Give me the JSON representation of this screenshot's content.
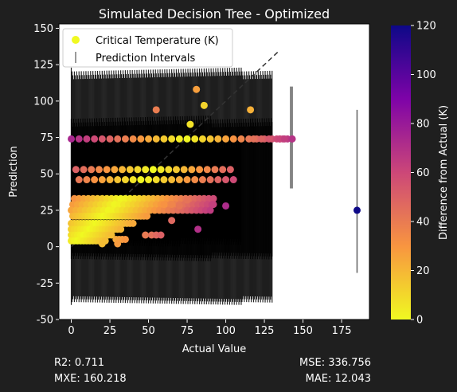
{
  "colors": {
    "background": "#1f1f1f",
    "plot_background": "#ffffff",
    "text": "#ffffff",
    "errorbar": "#000000",
    "reference_line": "#333333"
  },
  "chart_data": {
    "type": "scatter",
    "title": "Simulated Decision Tree - Optimized",
    "xlabel": "Actual Value",
    "ylabel": "Prediction",
    "xlim": [
      -8,
      193
    ],
    "ylim": [
      -50,
      153
    ],
    "xticks": [
      0,
      25,
      50,
      75,
      100,
      125,
      150,
      175
    ],
    "yticks": [
      -50,
      -25,
      0,
      25,
      50,
      75,
      100,
      125,
      150
    ],
    "grid": false,
    "legend": {
      "placement": "upper left",
      "entries": [
        {
          "label": "Critical Temperature (K)",
          "marker": "circle",
          "color": "#f0f921"
        },
        {
          "label": "Prediction Intervals",
          "marker": "vline",
          "color": "#808080"
        }
      ]
    },
    "colorbar": {
      "label": "Difference from Actual (K)",
      "colormap": "plasma_r",
      "range": [
        0,
        120
      ],
      "ticks": [
        0,
        20,
        40,
        60,
        80,
        100,
        120
      ]
    },
    "reference_line": {
      "x": [
        0,
        135
      ],
      "y": [
        0,
        135
      ],
      "style": "dashed"
    },
    "interval_bands": [
      {
        "x_from": 0,
        "x_to": 130,
        "lower": -40,
        "upper": 123
      },
      {
        "x_from": 0,
        "x_to": 130,
        "lower": -10,
        "upper": 90
      },
      {
        "x_from": 0,
        "x_to": 110,
        "lower": 0,
        "upper": 75
      }
    ],
    "intervals": [
      {
        "x": 142,
        "lower": 40,
        "upper": 110
      },
      {
        "x": 143,
        "lower": 40,
        "upper": 110
      },
      {
        "x": 185,
        "lower": -18,
        "upper": 94
      }
    ],
    "series": [
      {
        "x": [
          0,
          5,
          10,
          15,
          20,
          25,
          30,
          35,
          40,
          45,
          50,
          55,
          60,
          65,
          70,
          75,
          80,
          85,
          90,
          95,
          100,
          105,
          110,
          115,
          120,
          125,
          130,
          135,
          137,
          140,
          143
        ],
        "y": [
          74,
          74,
          74,
          74,
          74,
          74,
          74,
          74,
          74,
          74,
          74,
          74,
          74,
          74,
          74,
          74,
          74,
          74,
          74,
          74,
          74,
          74,
          74,
          74,
          74,
          74,
          74,
          74,
          74,
          74,
          74
        ],
        "diff": [
          74,
          69,
          64,
          59,
          54,
          49,
          44,
          39,
          34,
          29,
          24,
          19,
          14,
          9,
          4,
          1,
          6,
          11,
          16,
          21,
          26,
          31,
          36,
          41,
          46,
          51,
          56,
          61,
          63,
          66,
          69
        ]
      },
      {
        "x": [
          3,
          8,
          13,
          18,
          23,
          28,
          33,
          38,
          43,
          48,
          53,
          58,
          63,
          68,
          73,
          78,
          83,
          88,
          93,
          98,
          103
        ],
        "y": [
          53,
          53,
          53,
          53,
          53,
          53,
          53,
          53,
          53,
          53,
          53,
          53,
          53,
          53,
          53,
          53,
          53,
          53,
          53,
          53,
          53
        ],
        "diff": [
          50,
          45,
          40,
          35,
          30,
          25,
          20,
          15,
          10,
          5,
          0,
          5,
          10,
          15,
          20,
          25,
          30,
          35,
          40,
          45,
          50
        ]
      },
      {
        "x": [
          5,
          10,
          15,
          20,
          25,
          30,
          35,
          40,
          45,
          50,
          55,
          60,
          65,
          70,
          75,
          80,
          85,
          90,
          95,
          100,
          105
        ],
        "y": [
          46,
          46,
          46,
          46,
          46,
          46,
          46,
          46,
          46,
          46,
          46,
          46,
          46,
          46,
          46,
          46,
          46,
          46,
          46,
          46,
          46
        ],
        "diff": [
          41,
          36,
          31,
          26,
          21,
          16,
          11,
          6,
          1,
          4,
          9,
          14,
          19,
          24,
          29,
          34,
          39,
          44,
          49,
          54,
          59
        ]
      },
      {
        "x": [
          2,
          5,
          8,
          11,
          14,
          17,
          20,
          23,
          26,
          29,
          32,
          35,
          38,
          41,
          44,
          47,
          50,
          53,
          56,
          59,
          62,
          65,
          68,
          71,
          74,
          77,
          80,
          83,
          86,
          89,
          92
        ],
        "y": [
          33,
          33,
          33,
          33,
          33,
          33,
          33,
          33,
          33,
          33,
          33,
          33,
          33,
          33,
          33,
          33,
          33,
          33,
          33,
          33,
          33,
          33,
          33,
          33,
          33,
          33,
          33,
          33,
          33,
          33,
          33
        ],
        "diff": [
          31,
          28,
          25,
          22,
          19,
          16,
          13,
          10,
          7,
          4,
          1,
          2,
          5,
          8,
          11,
          14,
          17,
          20,
          23,
          26,
          29,
          32,
          35,
          38,
          41,
          44,
          47,
          50,
          53,
          56,
          59
        ]
      },
      {
        "x": [
          1,
          4,
          7,
          10,
          13,
          16,
          19,
          22,
          25,
          28,
          31,
          34,
          37,
          40,
          43,
          46,
          49,
          52,
          55,
          58,
          61,
          64,
          67,
          70,
          73,
          76,
          79,
          82,
          85,
          88,
          91
        ],
        "y": [
          29,
          29,
          29,
          29,
          29,
          29,
          29,
          29,
          29,
          29,
          29,
          29,
          29,
          29,
          29,
          29,
          29,
          29,
          29,
          29,
          29,
          29,
          29,
          29,
          29,
          29,
          29,
          29,
          29,
          29,
          29
        ],
        "diff": [
          28,
          25,
          22,
          19,
          16,
          13,
          10,
          7,
          4,
          1,
          2,
          5,
          8,
          11,
          14,
          17,
          20,
          23,
          26,
          29,
          32,
          35,
          38,
          41,
          44,
          47,
          50,
          53,
          56,
          59,
          62
        ]
      },
      {
        "x": [
          0,
          3,
          6,
          9,
          12,
          15,
          18,
          21,
          24,
          27,
          30,
          33,
          36,
          39,
          42,
          45,
          48,
          51,
          54,
          57,
          60,
          63,
          66,
          69,
          72,
          75,
          78,
          81,
          84,
          87,
          90
        ],
        "y": [
          25,
          25,
          25,
          25,
          25,
          25,
          25,
          25,
          25,
          25,
          25,
          25,
          25,
          25,
          25,
          25,
          25,
          25,
          25,
          25,
          25,
          25,
          25,
          25,
          25,
          25,
          25,
          25,
          25,
          25,
          25
        ],
        "diff": [
          25,
          22,
          19,
          16,
          13,
          10,
          7,
          4,
          1,
          2,
          5,
          8,
          11,
          14,
          17,
          20,
          23,
          26,
          29,
          32,
          35,
          38,
          41,
          44,
          47,
          50,
          53,
          56,
          59,
          62,
          65
        ]
      },
      {
        "x": [
          1,
          3,
          5,
          7,
          9,
          11,
          13,
          15,
          17,
          19,
          21,
          23,
          25,
          27,
          29,
          31,
          33,
          35,
          37,
          39,
          41,
          43,
          45,
          47,
          49
        ],
        "y": [
          21,
          21,
          21,
          21,
          21,
          21,
          21,
          21,
          21,
          21,
          21,
          21,
          21,
          21,
          21,
          21,
          21,
          21,
          21,
          21,
          21,
          21,
          21,
          21,
          21
        ],
        "diff": [
          20,
          18,
          16,
          14,
          12,
          10,
          8,
          6,
          4,
          2,
          0,
          2,
          4,
          6,
          8,
          10,
          12,
          14,
          16,
          18,
          20,
          22,
          24,
          26,
          28
        ]
      },
      {
        "x": [
          0,
          2,
          4,
          6,
          8,
          10,
          12,
          14,
          16,
          18,
          20,
          22,
          24,
          26,
          28,
          30,
          32,
          34,
          36,
          38,
          40
        ],
        "y": [
          16,
          16,
          16,
          16,
          16,
          16,
          16,
          16,
          16,
          16,
          16,
          16,
          16,
          16,
          16,
          16,
          16,
          16,
          16,
          16,
          16
        ],
        "diff": [
          16,
          14,
          12,
          10,
          8,
          6,
          4,
          2,
          0,
          2,
          4,
          6,
          8,
          10,
          12,
          14,
          16,
          18,
          20,
          22,
          24
        ]
      },
      {
        "x": [
          0,
          2,
          4,
          6,
          8,
          10,
          12,
          14,
          16,
          18,
          20,
          22,
          24,
          26,
          28,
          30,
          32
        ],
        "y": [
          12,
          12,
          12,
          12,
          12,
          12,
          12,
          12,
          12,
          12,
          12,
          12,
          12,
          12,
          12,
          12,
          12
        ],
        "diff": [
          12,
          10,
          8,
          6,
          4,
          2,
          0,
          2,
          4,
          6,
          8,
          10,
          12,
          14,
          16,
          18,
          20
        ]
      },
      {
        "x": [
          0,
          2,
          4,
          6,
          8,
          10,
          12,
          14,
          16,
          18,
          20,
          22,
          24,
          26
        ],
        "y": [
          8,
          8,
          8,
          8,
          8,
          8,
          8,
          8,
          8,
          8,
          8,
          8,
          8,
          8
        ],
        "diff": [
          8,
          6,
          4,
          2,
          0,
          2,
          4,
          6,
          8,
          10,
          12,
          14,
          16,
          18
        ]
      },
      {
        "x": [
          0,
          2,
          4,
          6,
          8,
          10,
          12,
          14,
          16,
          18,
          20,
          22
        ],
        "y": [
          4,
          4,
          4,
          4,
          4,
          4,
          4,
          4,
          4,
          4,
          4,
          4
        ],
        "diff": [
          4,
          2,
          0,
          2,
          4,
          6,
          8,
          10,
          12,
          14,
          16,
          18
        ]
      },
      {
        "x": [
          81,
          86,
          77,
          116,
          55,
          65,
          82,
          100,
          48,
          52,
          55,
          58,
          29,
          31,
          33,
          35,
          20,
          30
        ],
        "y": [
          108,
          97,
          84,
          94,
          94,
          18,
          12,
          28,
          8,
          8,
          8,
          8,
          5,
          5,
          5,
          5,
          2,
          2
        ],
        "diff": [
          27,
          11,
          7,
          22,
          39,
          47,
          70,
          72,
          40,
          44,
          47,
          50,
          24,
          26,
          28,
          30,
          18,
          28
        ]
      },
      {
        "x": [
          60,
          65,
          70,
          75,
          92,
          118,
          123,
          128,
          133,
          135,
          138,
          143,
          185
        ],
        "y": [
          29,
          29,
          28,
          32,
          29,
          74,
          74,
          74,
          74,
          74,
          74,
          74,
          25
        ],
        "diff": [
          31,
          36,
          42,
          43,
          63,
          44,
          49,
          54,
          59,
          61,
          64,
          69,
          120
        ]
      }
    ]
  },
  "metrics": {
    "r2": "R2: 0.711",
    "mxe": "MXE: 160.218",
    "mse": "MSE: 336.756",
    "mae": "MAE: 12.043"
  }
}
